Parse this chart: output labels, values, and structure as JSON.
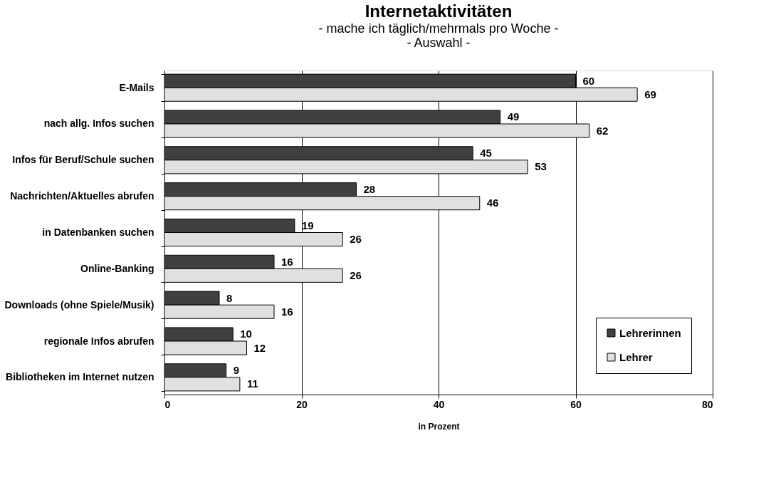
{
  "chart_data": {
    "type": "bar",
    "orientation": "horizontal",
    "title": "Internetaktivitäten",
    "subtitle": "- mache ich täglich/mehrmals pro Woche -\n- Auswahl -",
    "xlabel": "in Prozent",
    "categories": [
      "E-Mails",
      "nach allg. Infos suchen",
      "Infos für Beruf/Schule suchen",
      "Nachrichten/Aktuelles abrufen",
      "in Datenbanken suchen",
      "Online-Banking",
      "Downloads (ohne Spiele/Musik)",
      "regionale Infos abrufen",
      "Bibliotheken im Internet nutzen"
    ],
    "series": [
      {
        "name": "Lehrerinnen",
        "color": "#404040",
        "values": [
          60,
          49,
          45,
          28,
          19,
          16,
          8,
          10,
          9
        ]
      },
      {
        "name": "Lehrer",
        "color": "#e0e0e0",
        "values": [
          69,
          62,
          53,
          46,
          26,
          26,
          16,
          12,
          11
        ]
      }
    ],
    "xlim": [
      0,
      80
    ],
    "xticks": [
      0,
      20,
      40,
      60,
      80
    ],
    "grid": "x",
    "legend": "bottom right",
    "data_labels": true
  }
}
